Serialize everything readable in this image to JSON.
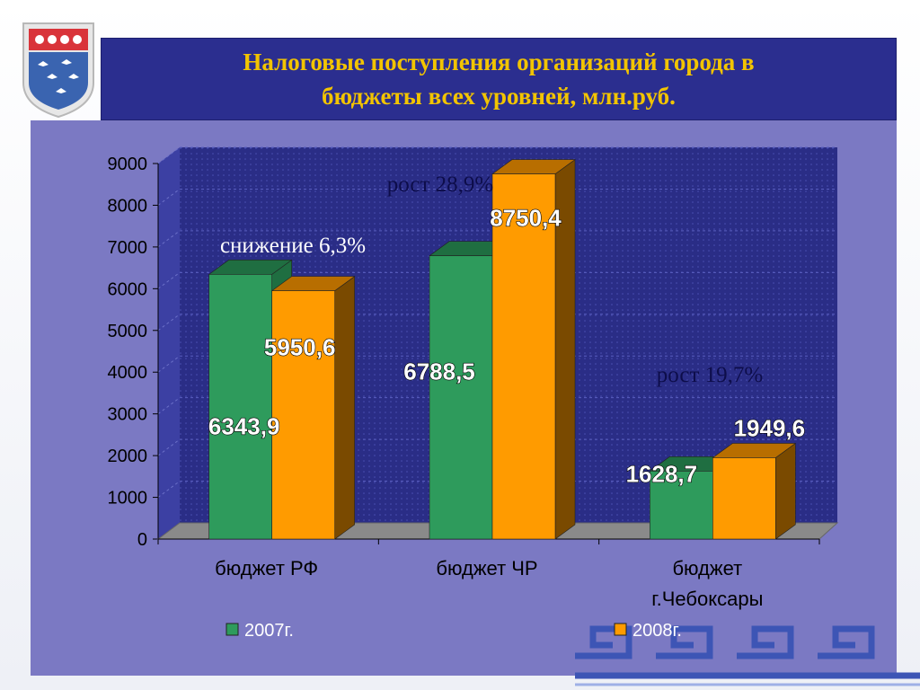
{
  "title": "Налоговые поступления организаций города в\nбюджеты всех уровней, млн.руб.",
  "crest_icon": "cheboksary-coat-of-arms-icon",
  "ornament_icon": "greek-key-ornament-icon",
  "chart_data": {
    "type": "bar",
    "title": "Налоговые поступления организаций города в бюджеты всех уровней, млн.руб.",
    "categories": [
      "бюджет РФ",
      "бюджет ЧР",
      "бюджет\nг.Чебоксары"
    ],
    "series": [
      {
        "name": "2007г.",
        "values": [
          6343.9,
          6788.5,
          1628.7
        ],
        "labels": [
          "6343,9",
          "6788,5",
          "1628,7"
        ],
        "color": "#2e9b5c",
        "top_color": "#1f6e41",
        "side_color": "#1f6e41"
      },
      {
        "name": "2008г.",
        "values": [
          5950.6,
          8750.4,
          1949.6
        ],
        "labels": [
          "5950,6",
          "8750,4",
          "1949,6"
        ],
        "color": "#ff9b00",
        "top_color": "#b86e00",
        "side_color": "#7a4a00"
      }
    ],
    "yticks": [
      "0",
      "1000",
      "2000",
      "3000",
      "4000",
      "5000",
      "6000",
      "7000",
      "8000",
      "9000"
    ],
    "ylim": [
      0,
      9000
    ],
    "grid": true,
    "legend": "bottom",
    "annotations": [
      "снижение 6,3%",
      "рост 28,9%",
      "рост 19,7%"
    ],
    "colors": {
      "plot_bg": "#2a2d86",
      "panel_bg": "#7b79c3",
      "floor": "#8a8a8a",
      "title_text": "#f2c400"
    }
  }
}
